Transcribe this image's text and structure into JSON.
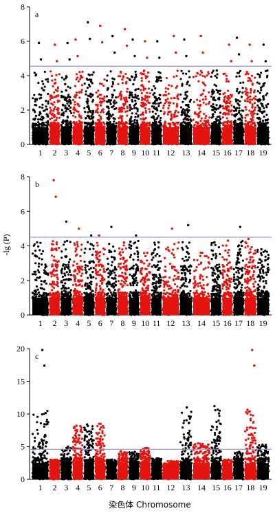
{
  "figure": {
    "ylabel": "-lg (P)",
    "xlabel": "染色体 Chromosome",
    "colors": {
      "odd": "#000000",
      "even": "#e3140f",
      "threshold": "#8c8ed0",
      "axis": "#000000"
    }
  },
  "chart_data": [
    {
      "type": "scatter",
      "panel": "a",
      "title": "",
      "xlabel": "",
      "ylabel": "",
      "ylim": [
        0,
        8
      ],
      "yticks": [
        0,
        2,
        4,
        6,
        8
      ],
      "threshold": 4.55,
      "categories": [
        "1",
        "2",
        "3",
        "4",
        "5",
        "6",
        "7",
        "8",
        "9",
        "10",
        "11",
        "12",
        "13",
        "14",
        "15",
        "16",
        "17",
        "18",
        "19"
      ],
      "chromosome_max": [
        5.9,
        5.8,
        5.9,
        6.1,
        7.1,
        6.9,
        6.3,
        6.7,
        6.1,
        6.0,
        6.0,
        6.3,
        6.1,
        6.3,
        4.3,
        5.8,
        6.2,
        5.8,
        5.8
      ]
    },
    {
      "type": "scatter",
      "panel": "b",
      "title": "",
      "xlabel": "",
      "ylabel": "-lg (P)",
      "ylim": [
        0,
        8
      ],
      "yticks": [
        0,
        2,
        4,
        6,
        8
      ],
      "threshold": 4.5,
      "categories": [
        "1",
        "2",
        "3",
        "4",
        "5",
        "6",
        "7",
        "8",
        "9",
        "10",
        "11",
        "12",
        "13",
        "14",
        "15",
        "16",
        "17",
        "18",
        "19"
      ],
      "chromosome_max": [
        4.2,
        7.8,
        5.4,
        5.0,
        4.6,
        4.6,
        5.1,
        4.2,
        4.6,
        3.6,
        4.2,
        5.0,
        5.2,
        3.6,
        4.2,
        4.3,
        5.1,
        4.4,
        3.8
      ]
    },
    {
      "type": "scatter",
      "panel": "c",
      "title": "",
      "xlabel": "染色体 Chromosome",
      "ylabel": "",
      "ylim": [
        0,
        20
      ],
      "yticks": [
        0,
        5,
        10,
        15,
        20
      ],
      "threshold": 4.6,
      "categories": [
        "1",
        "2",
        "3",
        "4",
        "5",
        "6",
        "7",
        "8",
        "9",
        "10",
        "11",
        "12",
        "13",
        "14",
        "15",
        "16",
        "17",
        "18",
        "19"
      ],
      "chromosome_max": [
        19.8,
        3.0,
        5.0,
        8.2,
        8.4,
        8.5,
        3.0,
        4.3,
        4.2,
        4.8,
        3.2,
        2.8,
        11.0,
        5.5,
        11.2,
        3.0,
        4.2,
        19.8,
        5.3
      ]
    }
  ]
}
